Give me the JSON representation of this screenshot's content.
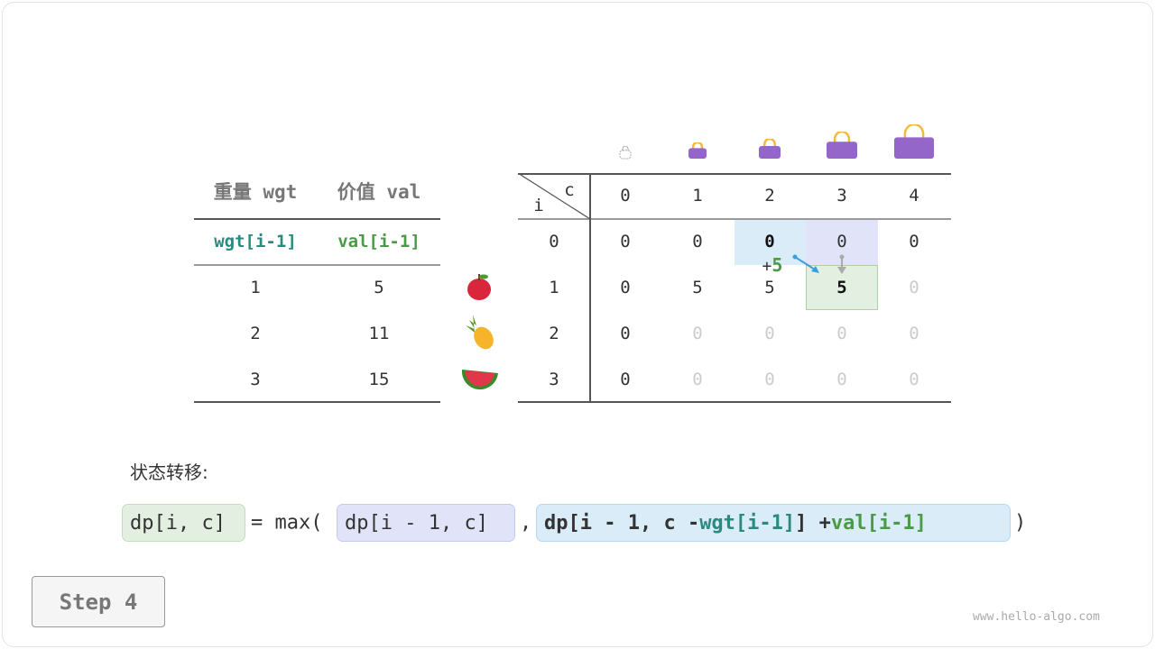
{
  "items_table": {
    "headers": [
      "重量 wgt",
      "价值 val"
    ],
    "subheaders": [
      "wgt[i-1]",
      "val[i-1]"
    ],
    "rows": [
      [
        "1",
        "5"
      ],
      [
        "2",
        "11"
      ],
      [
        "3",
        "15"
      ]
    ],
    "fruit_icons": [
      "apple-icon",
      "pineapple-icon",
      "watermelon-icon"
    ]
  },
  "dp_table": {
    "corner_c": "c",
    "corner_i": "i",
    "capacities": [
      "0",
      "1",
      "2",
      "3",
      "4"
    ],
    "row_labels": [
      "0",
      "1",
      "2",
      "3"
    ],
    "rows": [
      [
        "0",
        "0",
        "0",
        "0",
        "0"
      ],
      [
        "0",
        "5",
        "5",
        "5",
        "0"
      ],
      [
        "0",
        "0",
        "0",
        "0",
        "0"
      ],
      [
        "0",
        "0",
        "0",
        "0",
        "0"
      ]
    ],
    "annotation": "+",
    "annotation_value": "5",
    "bag_icons": [
      "bag-empty-icon",
      "bag-1-icon",
      "bag-2-icon",
      "bag-3-icon",
      "bag-4-icon"
    ]
  },
  "formula": {
    "label": "状态转移:",
    "lhs": "dp[i, c]",
    "eq": "= max(",
    "a": "dp[i - 1, c]",
    "comma": ",",
    "b1": "dp[i - 1, c - ",
    "b_wgt": "wgt[i-1]",
    "b2": "] + ",
    "b_val": "val[i-1]",
    "close": ")"
  },
  "step_label": "Step 4",
  "watermark": "www.hello-algo.com",
  "colors": {
    "lhs_bg": "#e3f0e1",
    "a_bg": "#e1e4f8",
    "b_bg": "#dbecf9",
    "teal": "#2b8a7e",
    "green": "#4a9a47",
    "bag": "#9466c9"
  }
}
